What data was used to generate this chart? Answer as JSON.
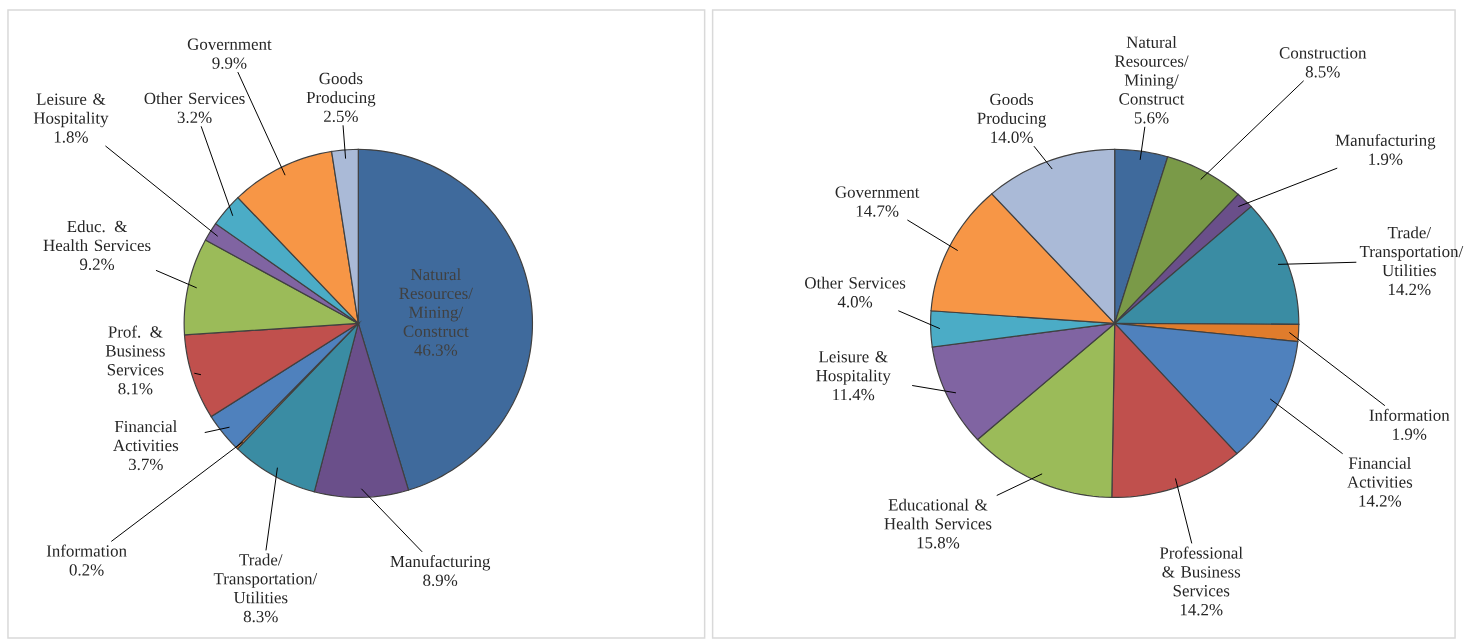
{
  "chart_data": [
    {
      "type": "pie",
      "categories": [
        "Natural Resources/Mining/Construct",
        "Manufacturing",
        "Trade/Transportation/Utilities",
        "Information",
        "Financial Activities",
        "Prof. & Business Services",
        "Educ. & Health Services",
        "Leisure & Hospitality",
        "Other Services",
        "Government",
        "Goods Producing"
      ],
      "values": [
        46.3,
        8.9,
        8.3,
        0.2,
        3.7,
        8.1,
        9.2,
        1.8,
        3.2,
        9.9,
        2.5
      ],
      "value_labels": [
        "46.3%",
        "8.9%",
        "8.3%",
        "0.2%",
        "3.7%",
        "8.1%",
        "9.2%",
        "1.8%",
        "3.2%",
        "9.9%",
        "2.5%"
      ],
      "colors": [
        "#3f6a9c",
        "#6a4f8a",
        "#3a8ca3",
        "#e07c2c",
        "#4f81bd",
        "#c0504d",
        "#9bbb59",
        "#8064a2",
        "#4bacc6",
        "#f79646",
        "#aabad7"
      ]
    },
    {
      "type": "pie",
      "categories": [
        "Natural Resources/Mining/Construct",
        "Construction",
        "Manufacturing",
        "Trade/Transportation/Utilities",
        "Information",
        "Financial Activities",
        "Professional & Business Services",
        "Educational & Health Services",
        "Leisure & Hospitality",
        "Other Services",
        "Government",
        "Goods Producing"
      ],
      "values": [
        5.6,
        8.5,
        1.9,
        14.2,
        1.9,
        14.2,
        14.2,
        15.8,
        11.4,
        4.0,
        14.7,
        14.0
      ],
      "value_labels": [
        "5.6%",
        "8.5%",
        "1.9%",
        "14.2%",
        "1.9%",
        "14.2%",
        "14.2%",
        "15.8%",
        "11.4%",
        "4.0%",
        "14.7%",
        "14.0%"
      ],
      "colors": [
        "#3f6a9c",
        "#7a9a48",
        "#6a4f8a",
        "#3a8ca3",
        "#e07c2c",
        "#4f81bd",
        "#c0504d",
        "#9bbb59",
        "#8064a2",
        "#4bacc6",
        "#f79646",
        "#aabad7"
      ]
    }
  ]
}
